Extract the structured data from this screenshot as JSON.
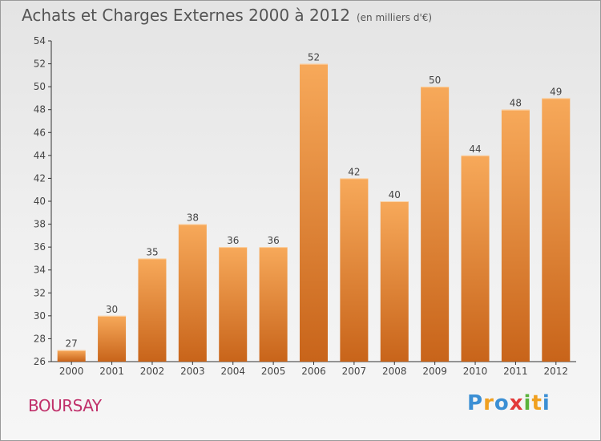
{
  "header": {
    "title": "Achats et Charges Externes 2000 à 2012",
    "unit": "(en milliers d'€)"
  },
  "footer": {
    "commune": "BOURSAY",
    "brand_letters": [
      "P",
      "r",
      "o",
      "x",
      "i",
      "t",
      "i"
    ],
    "brand_colors": [
      "#3b8fd4",
      "#f0a020",
      "#3b8fd4",
      "#e23a3a",
      "#5bb33c",
      "#f0a020",
      "#3b8fd4"
    ]
  },
  "colors": {
    "bar_light": "#f7a95a",
    "bar_dark": "#c8641a",
    "commune": "#c0306a"
  },
  "chart_data": {
    "type": "bar",
    "title": "Achats et Charges Externes 2000 à 2012",
    "subtitle": "(en milliers d'€)",
    "xlabel": "",
    "ylabel": "",
    "categories": [
      "2000",
      "2001",
      "2002",
      "2003",
      "2004",
      "2005",
      "2006",
      "2007",
      "2008",
      "2009",
      "2010",
      "2011",
      "2012"
    ],
    "values": [
      27,
      30,
      35,
      38,
      36,
      36,
      52,
      42,
      40,
      50,
      44,
      48,
      49
    ],
    "ylim": [
      26,
      54
    ],
    "yticks": [
      26,
      28,
      30,
      32,
      34,
      36,
      38,
      40,
      42,
      44,
      46,
      48,
      50,
      52,
      54
    ],
    "grid": false,
    "legend": "none"
  }
}
